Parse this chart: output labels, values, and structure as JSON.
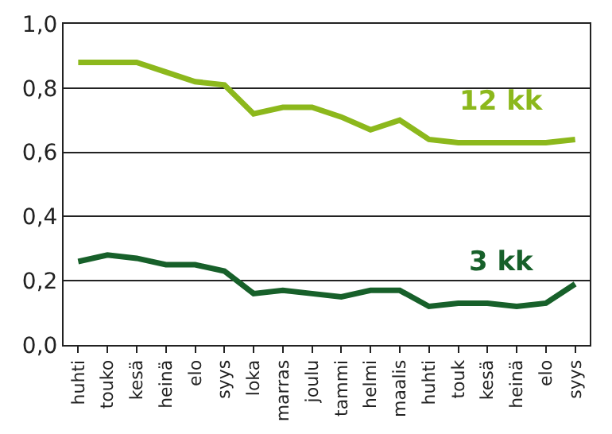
{
  "chart_data": {
    "type": "line",
    "categories": [
      "huhti",
      "touko",
      "kesä",
      "heinä",
      "elo",
      "syys",
      "loka",
      "marras",
      "joulu",
      "tammi",
      "helmi",
      "maalis",
      "huhti",
      "touk",
      "kesä",
      "heinä",
      "elo",
      "syys"
    ],
    "series": [
      {
        "name": "12 kk",
        "color": "#8cb81c",
        "values": [
          0.88,
          0.88,
          0.88,
          0.85,
          0.82,
          0.81,
          0.72,
          0.74,
          0.74,
          0.71,
          0.67,
          0.7,
          0.64,
          0.63,
          0.63,
          0.63,
          0.63,
          0.64
        ]
      },
      {
        "name": "3 kk",
        "color": "#17602a",
        "values": [
          0.26,
          0.28,
          0.27,
          0.25,
          0.25,
          0.23,
          0.16,
          0.17,
          0.16,
          0.15,
          0.17,
          0.17,
          0.12,
          0.13,
          0.13,
          0.12,
          0.13,
          0.19
        ]
      }
    ],
    "ylim": [
      0,
      1.0
    ],
    "yticks": [
      {
        "value": 0,
        "label": "0,0"
      },
      {
        "value": 0.2,
        "label": "0,2"
      },
      {
        "value": 0.4,
        "label": "0,4"
      },
      {
        "value": 0.6,
        "label": "0,6"
      },
      {
        "value": 0.8,
        "label": "0,8"
      },
      {
        "value": 1.0,
        "label": "1,0"
      }
    ],
    "grid": "y",
    "legend": false,
    "marker": "none",
    "line_style": "solid"
  }
}
